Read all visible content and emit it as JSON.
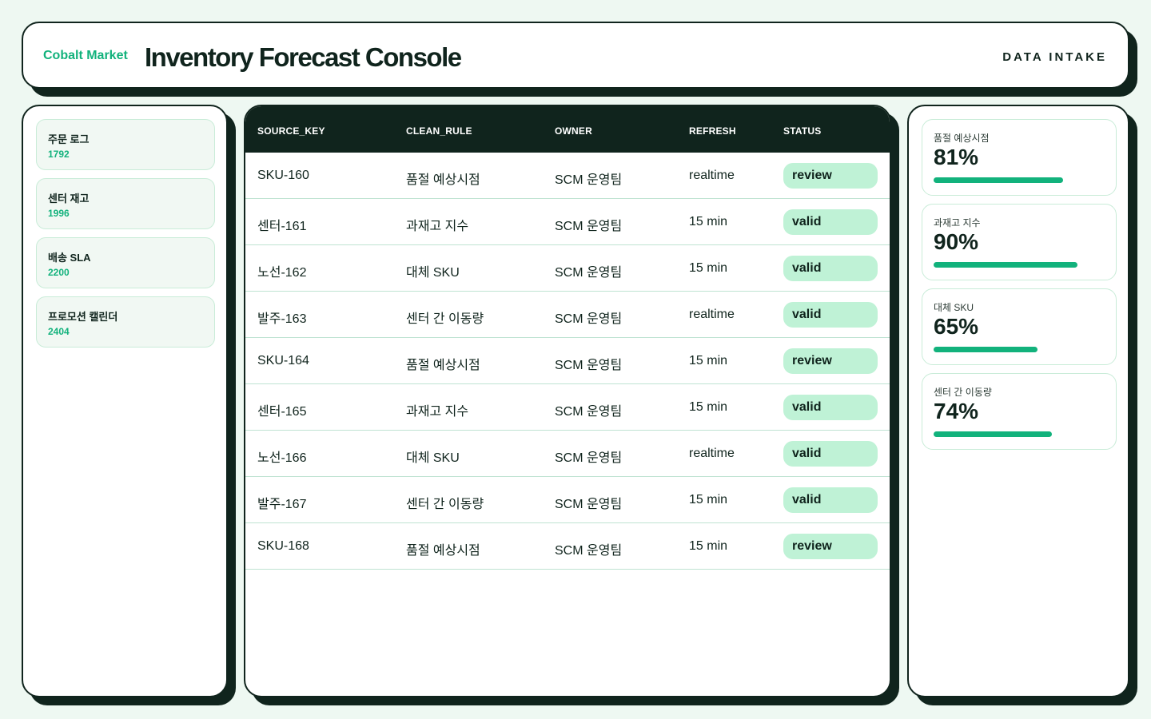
{
  "header": {
    "brand": "Cobalt Market",
    "title": "Inventory Forecast Console",
    "section": "DATA INTAKE"
  },
  "sidebar": {
    "items": [
      {
        "label": "주문 로그",
        "count": "1792"
      },
      {
        "label": "센터 재고",
        "count": "1996"
      },
      {
        "label": "배송 SLA",
        "count": "2200"
      },
      {
        "label": "프로모션 캘린더",
        "count": "2404"
      }
    ]
  },
  "table": {
    "columns": [
      "SOURCE_KEY",
      "CLEAN_RULE",
      "OWNER",
      "REFRESH",
      "STATUS"
    ],
    "rows": [
      {
        "source_key": "SKU-160",
        "clean_rule": "품절 예상시점",
        "owner": "SCM 운영팀",
        "refresh": "realtime",
        "status": "review"
      },
      {
        "source_key": "센터-161",
        "clean_rule": "과재고 지수",
        "owner": "SCM 운영팀",
        "refresh": "15 min",
        "status": "valid"
      },
      {
        "source_key": "노선-162",
        "clean_rule": "대체 SKU",
        "owner": "SCM 운영팀",
        "refresh": "15 min",
        "status": "valid"
      },
      {
        "source_key": "발주-163",
        "clean_rule": "센터 간 이동량",
        "owner": "SCM 운영팀",
        "refresh": "realtime",
        "status": "valid"
      },
      {
        "source_key": "SKU-164",
        "clean_rule": "품절 예상시점",
        "owner": "SCM 운영팀",
        "refresh": "15 min",
        "status": "review"
      },
      {
        "source_key": "센터-165",
        "clean_rule": "과재고 지수",
        "owner": "SCM 운영팀",
        "refresh": "15 min",
        "status": "valid"
      },
      {
        "source_key": "노선-166",
        "clean_rule": "대체 SKU",
        "owner": "SCM 운영팀",
        "refresh": "realtime",
        "status": "valid"
      },
      {
        "source_key": "발주-167",
        "clean_rule": "센터 간 이동량",
        "owner": "SCM 운영팀",
        "refresh": "15 min",
        "status": "valid"
      },
      {
        "source_key": "SKU-168",
        "clean_rule": "품절 예상시점",
        "owner": "SCM 운영팀",
        "refresh": "15 min",
        "status": "review"
      }
    ]
  },
  "metrics": [
    {
      "label": "품절 예상시점",
      "value": "81%",
      "fraction": 0.81
    },
    {
      "label": "과재고 지수",
      "value": "90%",
      "fraction": 0.9
    },
    {
      "label": "대체 SKU",
      "value": "65%",
      "fraction": 0.65
    },
    {
      "label": "센터 간 이동량",
      "value": "74%",
      "fraction": 0.74
    }
  ],
  "colors": {
    "accent": "#12b27c",
    "dark": "#10241d",
    "badge_bg": "#bff2d6",
    "page_bg": "#eef8f2"
  }
}
